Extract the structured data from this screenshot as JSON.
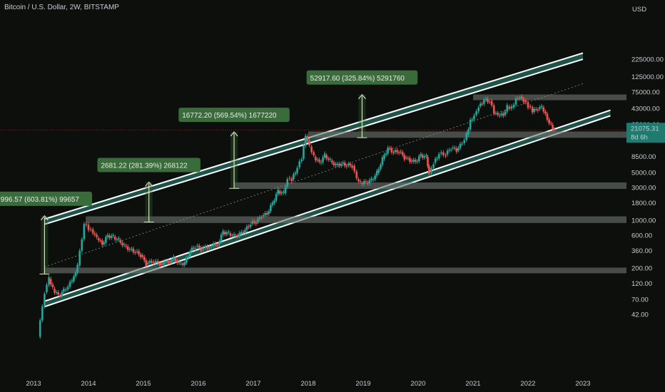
{
  "header": {
    "title": "Bitcoin / U.S. Dollar, 2W, BITSTAMP"
  },
  "colors": {
    "background": "#0d0f0d",
    "up": "#26a69a",
    "down": "#ef5350",
    "channel_fill": "#2e8e7b",
    "zone": "#6e7570",
    "label_bg": "#3a6b3a"
  },
  "chart_data": {
    "type": "candlestick",
    "title": "Bitcoin / U.S. Dollar, 2W, BITSTAMP",
    "y_axis": {
      "unit": "USD",
      "scale": "log",
      "position": "right",
      "ticks": [
        "225000.00",
        "125000.00",
        "75000.00",
        "43000.00",
        "25000.00",
        "8500.00",
        "5000.00",
        "3000.00",
        "1800.00",
        "1000.00",
        "600.00",
        "360.00",
        "200.00",
        "120.00",
        "70.00",
        "42.00"
      ]
    },
    "x_axis": {
      "ticks": [
        "2013",
        "2014",
        "2015",
        "2016",
        "2017",
        "2018",
        "2019",
        "2020",
        "2021",
        "2022",
        "2023"
      ],
      "range": [
        2013.0,
        2023.5
      ]
    },
    "current_price": {
      "value": "21075.31",
      "countdown": "8d 6h"
    },
    "price_path": [
      [
        2013.08,
        20
      ],
      [
        2013.2,
        90
      ],
      [
        2013.28,
        140
      ],
      [
        2013.35,
        100
      ],
      [
        2013.45,
        80
      ],
      [
        2013.55,
        95
      ],
      [
        2013.7,
        130
      ],
      [
        2013.8,
        220
      ],
      [
        2013.92,
        900
      ],
      [
        2014.0,
        750
      ],
      [
        2014.08,
        650
      ],
      [
        2014.15,
        550
      ],
      [
        2014.25,
        450
      ],
      [
        2014.35,
        600
      ],
      [
        2014.45,
        580
      ],
      [
        2014.55,
        520
      ],
      [
        2014.65,
        430
      ],
      [
        2014.75,
        380
      ],
      [
        2014.85,
        350
      ],
      [
        2014.95,
        310
      ],
      [
        2015.05,
        230
      ],
      [
        2015.15,
        250
      ],
      [
        2015.3,
        235
      ],
      [
        2015.45,
        250
      ],
      [
        2015.55,
        280
      ],
      [
        2015.65,
        235
      ],
      [
        2015.75,
        240
      ],
      [
        2015.85,
        360
      ],
      [
        2015.95,
        420
      ],
      [
        2016.05,
        380
      ],
      [
        2016.2,
        420
      ],
      [
        2016.35,
        450
      ],
      [
        2016.45,
        680
      ],
      [
        2016.55,
        650
      ],
      [
        2016.65,
        600
      ],
      [
        2016.75,
        640
      ],
      [
        2016.85,
        730
      ],
      [
        2016.95,
        900
      ],
      [
        2017.05,
        950
      ],
      [
        2017.15,
        1150
      ],
      [
        2017.25,
        1250
      ],
      [
        2017.35,
        1800
      ],
      [
        2017.45,
        2700
      ],
      [
        2017.55,
        2500
      ],
      [
        2017.62,
        4200
      ],
      [
        2017.7,
        4000
      ],
      [
        2017.8,
        6000
      ],
      [
        2017.88,
        8000
      ],
      [
        2017.95,
        17000
      ],
      [
        2018.02,
        12000
      ],
      [
        2018.1,
        8500
      ],
      [
        2018.2,
        7000
      ],
      [
        2018.3,
        9000
      ],
      [
        2018.4,
        7500
      ],
      [
        2018.5,
        6500
      ],
      [
        2018.6,
        6800
      ],
      [
        2018.7,
        6400
      ],
      [
        2018.8,
        6300
      ],
      [
        2018.88,
        4000
      ],
      [
        2018.95,
        3500
      ],
      [
        2019.05,
        3600
      ],
      [
        2019.15,
        3900
      ],
      [
        2019.25,
        5000
      ],
      [
        2019.35,
        8000
      ],
      [
        2019.45,
        11500
      ],
      [
        2019.55,
        10000
      ],
      [
        2019.65,
        10200
      ],
      [
        2019.75,
        8300
      ],
      [
        2019.85,
        7500
      ],
      [
        2019.95,
        7200
      ],
      [
        2020.05,
        9000
      ],
      [
        2020.15,
        8500
      ],
      [
        2020.2,
        5000
      ],
      [
        2020.28,
        7000
      ],
      [
        2020.38,
        9500
      ],
      [
        2020.5,
        9200
      ],
      [
        2020.6,
        11500
      ],
      [
        2020.7,
        10600
      ],
      [
        2020.8,
        13500
      ],
      [
        2020.88,
        18000
      ],
      [
        2020.95,
        29000
      ],
      [
        2021.02,
        35000
      ],
      [
        2021.1,
        47000
      ],
      [
        2021.2,
        58000
      ],
      [
        2021.3,
        56000
      ],
      [
        2021.38,
        37000
      ],
      [
        2021.45,
        34000
      ],
      [
        2021.55,
        35000
      ],
      [
        2021.62,
        46000
      ],
      [
        2021.7,
        45000
      ],
      [
        2021.78,
        61000
      ],
      [
        2021.85,
        65000
      ],
      [
        2021.92,
        57000
      ],
      [
        2022.0,
        47000
      ],
      [
        2022.08,
        39000
      ],
      [
        2022.18,
        43000
      ],
      [
        2022.25,
        45000
      ],
      [
        2022.35,
        30000
      ],
      [
        2022.42,
        25000
      ],
      [
        2022.48,
        21075
      ]
    ],
    "annotations": [
      {
        "label": "996.57 (603.81%) 99657",
        "x": 2013.2,
        "from": 165,
        "to": 1170
      },
      {
        "label": "2681.22 (281.39%) 268122",
        "x": 2015.1,
        "from": 950,
        "to": 3640
      },
      {
        "label": "16772.20 (569.54%) 1677220",
        "x": 2016.65,
        "from": 2950,
        "to": 19720
      },
      {
        "label": "52917.60 (325.84%) 5291760",
        "x": 2018.98,
        "from": 16240,
        "to": 69150
      }
    ],
    "support_zones": [
      {
        "from_x": 2013.2,
        "low": 170,
        "high": 205
      },
      {
        "from_x": 2013.95,
        "low": 920,
        "high": 1150
      },
      {
        "from_x": 2016.65,
        "low": 2900,
        "high": 3600
      },
      {
        "from_x": 2018.0,
        "low": 16200,
        "high": 20000
      },
      {
        "from_x": 2021.0,
        "low": 61000,
        "high": 69500
      }
    ],
    "channels": [
      {
        "x1": 2013.2,
        "y1_low": 880,
        "y1_high": 1050,
        "x2": 2023.0,
        "y2_low": 228000,
        "y2_high": 280000
      },
      {
        "x1": 2013.2,
        "y1_low": 55,
        "y1_high": 66,
        "x2": 2023.5,
        "y2_low": 34000,
        "y2_high": 41000
      }
    ],
    "midline": {
      "x1": 2013.2,
      "y1": 210,
      "x2": 2023.0,
      "y2": 100000
    },
    "grid": false
  }
}
